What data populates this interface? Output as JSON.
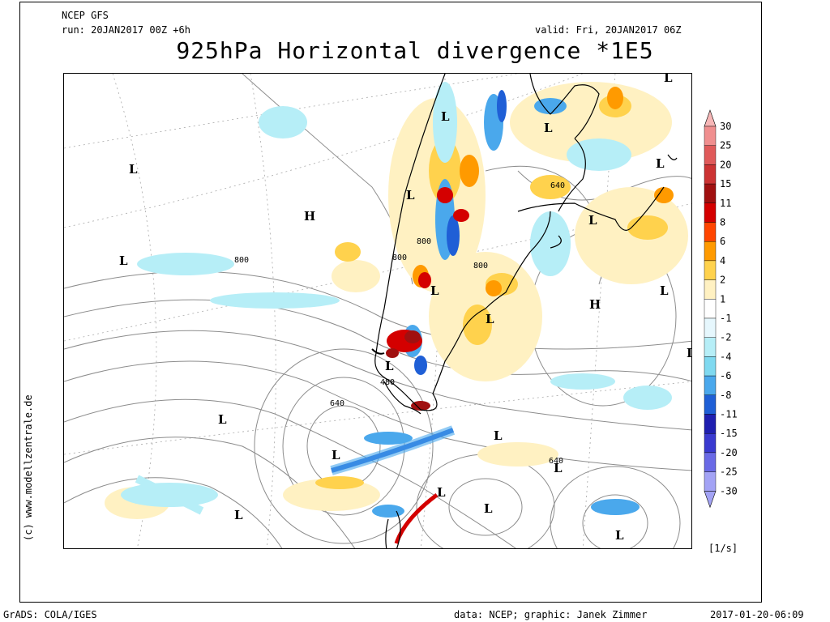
{
  "header": {
    "model": "NCEP GFS",
    "run": "run: 20JAN2017 00Z +6h",
    "valid": "valid: Fri, 20JAN2017 06Z",
    "title": "925hPa Horizontal divergence *1E5"
  },
  "credit": "(c) www.modellzentrale.de",
  "footer": {
    "left": "GrADS: COLA/IGES",
    "center": "data: NCEP; graphic: Janek Zimmer",
    "right": "2017-01-20-06:09"
  },
  "colorbar": {
    "unit": "[1/s]",
    "levels": [
      "30",
      "25",
      "20",
      "15",
      "11",
      "8",
      "6",
      "4",
      "2",
      "1",
      "-1",
      "-2",
      "-4",
      "-6",
      "-8",
      "-11",
      "-15",
      "-20",
      "-25",
      "-30"
    ],
    "colors": [
      "#f7b7b7",
      "#f08f8f",
      "#e05a5a",
      "#cc3333",
      "#a01010",
      "#d40000",
      "#ff4500",
      "#ff9a00",
      "#ffd24d",
      "#fff1c2",
      "#ffffff",
      "#e6f7fd",
      "#b6eef7",
      "#7fd9f0",
      "#4aa8ec",
      "#1f5fd6",
      "#1f1fb0",
      "#3a3ad0",
      "#6a6ae6",
      "#a3a3f5"
    ]
  },
  "pressure_systems": [
    {
      "type": "L"
    },
    {
      "type": "L"
    },
    {
      "type": "L"
    },
    {
      "type": "L"
    },
    {
      "type": "L"
    },
    {
      "type": "H"
    },
    {
      "type": "L"
    },
    {
      "type": "L"
    },
    {
      "type": "L"
    },
    {
      "type": "L"
    },
    {
      "type": "L"
    },
    {
      "type": "H"
    },
    {
      "type": "L"
    },
    {
      "type": "L"
    },
    {
      "type": "L"
    },
    {
      "type": "L"
    },
    {
      "type": "L"
    },
    {
      "type": "L"
    },
    {
      "type": "L"
    },
    {
      "type": "L"
    },
    {
      "type": "L"
    },
    {
      "type": "L"
    },
    {
      "type": "L"
    }
  ],
  "contour_labels": [
    "800",
    "800",
    "800",
    "800",
    "640",
    "480",
    "640"
  ]
}
